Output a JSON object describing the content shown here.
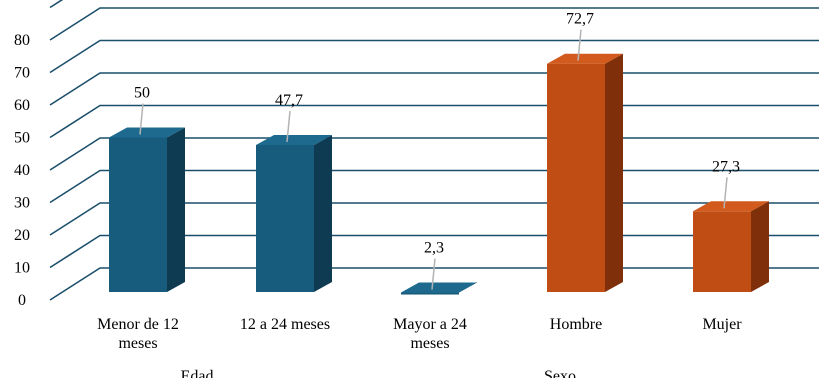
{
  "chart_data": {
    "type": "bar",
    "style": "3d-column",
    "categories": [
      "Menor de 12 meses",
      "12 a 24 meses",
      "Mayor a 24 meses",
      "Hombre",
      "Mujer"
    ],
    "category_lines": [
      [
        "Menor de 12",
        "meses"
      ],
      [
        "12 a 24 meses"
      ],
      [
        "Mayor a 24",
        "meses"
      ],
      [
        "Hombre"
      ],
      [
        "Mujer"
      ]
    ],
    "values": [
      50,
      47.7,
      2.3,
      72.7,
      27.3
    ],
    "value_labels": [
      "50",
      "47,7",
      "2,3",
      "72,7",
      "27,3"
    ],
    "groups": [
      {
        "label": "Edad",
        "categories": [
          "Menor de 12 meses",
          "12 a 24 meses",
          "Mayor a 24 meses"
        ],
        "color": "#175b7d"
      },
      {
        "label": "Sexo",
        "categories": [
          "Hombre",
          "Mujer"
        ],
        "color": "#c04e14"
      }
    ],
    "yticks": [
      0,
      10,
      20,
      30,
      40,
      50,
      60,
      70,
      80
    ],
    "ylim": [
      0,
      90
    ],
    "grid": true,
    "grid_color": "#1c4f6b",
    "colors": {
      "edad_front": "#175b7d",
      "edad_side": "#0e3b52",
      "edad_top": "#1e6a8f",
      "sexo_front": "#c04e14",
      "sexo_side": "#7f300b",
      "sexo_top": "#d25a1c"
    }
  }
}
